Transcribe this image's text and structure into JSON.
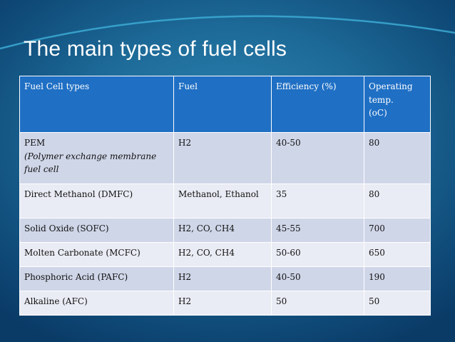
{
  "slide": {
    "title": "The main types of fuel cells"
  },
  "table": {
    "headers": [
      "Fuel Cell types",
      "Fuel",
      "Efficiency (%)",
      "Operating temp. (oC)"
    ],
    "header_temp_lines": [
      "Operating",
      "temp.",
      "(oC)"
    ],
    "rows": [
      {
        "type": "PEM",
        "type_note": "(Polymer exchange membrane fuel cell",
        "fuel": "H2",
        "efficiency": "40-50",
        "temp": "80"
      },
      {
        "type": "Direct Methanol (DMFC)",
        "fuel": "Methanol, Ethanol",
        "efficiency": "35",
        "temp": "80"
      },
      {
        "type": "Solid Oxide (SOFC)",
        "fuel": "H2, CO, CH4",
        "efficiency": "45-55",
        "temp": "700"
      },
      {
        "type": "Molten Carbonate (MCFC)",
        "fuel": "H2, CO, CH4",
        "efficiency": "50-60",
        "temp": "650"
      },
      {
        "type": "Phosphoric Acid (PAFC)",
        "fuel": "H2",
        "efficiency": "40-50",
        "temp": "190"
      },
      {
        "type": "Alkaline (AFC)",
        "fuel": "H2",
        "efficiency": "50",
        "temp": "50"
      }
    ]
  },
  "colors": {
    "background_center": "#2f86b4",
    "background_edge": "#0a3a66",
    "header_fill": "#1f6fc4",
    "row_dark": "#cfd6e8",
    "row_light": "#e9ecf4",
    "accent_curve": "#3fb0d8"
  }
}
